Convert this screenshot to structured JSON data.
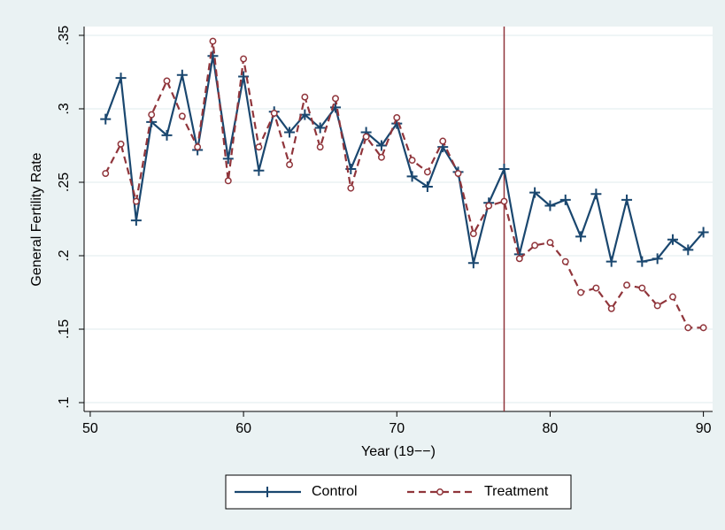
{
  "chart_data": {
    "type": "line",
    "xlabel": "Year (19−−)",
    "ylabel": "General Fertility Rate",
    "x": [
      51,
      52,
      53,
      54,
      55,
      56,
      57,
      58,
      59,
      60,
      61,
      62,
      63,
      64,
      65,
      66,
      67,
      68,
      69,
      70,
      71,
      72,
      73,
      74,
      75,
      76,
      77,
      78,
      79,
      80,
      81,
      82,
      83,
      84,
      85,
      86,
      87,
      88,
      89,
      90
    ],
    "series": [
      {
        "name": "Control",
        "color": "#1a476f",
        "marker": "plus",
        "dash": false,
        "values": [
          0.293,
          0.321,
          0.224,
          0.291,
          0.282,
          0.323,
          0.272,
          0.336,
          0.266,
          0.322,
          0.258,
          0.298,
          0.284,
          0.296,
          0.287,
          0.301,
          0.259,
          0.284,
          0.275,
          0.29,
          0.254,
          0.247,
          0.274,
          0.257,
          0.195,
          0.236,
          0.259,
          0.201,
          0.243,
          0.234,
          0.238,
          0.213,
          0.242,
          0.196,
          0.238,
          0.196,
          0.198,
          0.211,
          0.204,
          0.216
        ]
      },
      {
        "name": "Treatment",
        "color": "#90353b",
        "marker": "circle",
        "dash": true,
        "values": [
          0.256,
          0.276,
          0.237,
          0.296,
          0.319,
          0.295,
          0.274,
          0.346,
          0.251,
          0.334,
          0.274,
          0.297,
          0.262,
          0.308,
          0.274,
          0.307,
          0.246,
          0.281,
          0.267,
          0.294,
          0.265,
          0.257,
          0.278,
          0.256,
          0.215,
          0.234,
          0.237,
          0.198,
          0.207,
          0.209,
          0.196,
          0.175,
          0.178,
          0.164,
          0.18,
          0.178,
          0.166,
          0.172,
          0.151,
          0.151
        ]
      }
    ],
    "xlim": [
      49.6,
      90.6
    ],
    "ylim": [
      0.094,
      0.356
    ],
    "xticks": [
      50,
      60,
      70,
      80,
      90
    ],
    "yticks": [
      {
        "value": 0.1,
        "label": ".1"
      },
      {
        "value": 0.15,
        "label": ".15"
      },
      {
        "value": 0.2,
        "label": ".2"
      },
      {
        "value": 0.25,
        "label": ".25"
      },
      {
        "value": 0.3,
        "label": ".3"
      },
      {
        "value": 0.35,
        "label": ".35"
      }
    ],
    "grid": true,
    "xline": {
      "value": 77,
      "color": "#90353b"
    },
    "legend": "bottom"
  }
}
